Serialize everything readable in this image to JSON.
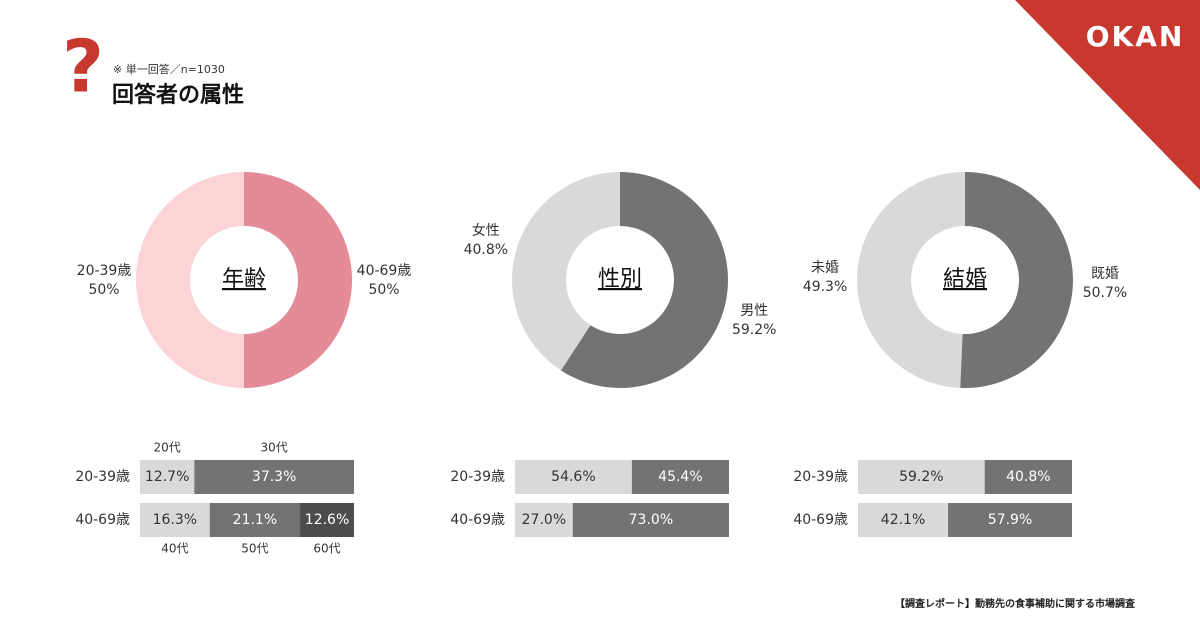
{
  "header": {
    "note": "※ 単一回答／n=1030",
    "title": "回答者の属性",
    "logo": "OKAN"
  },
  "footer": "【調査レポート】勤務先の食事補助に関する市場調査",
  "chart_data": [
    {
      "type": "donut",
      "title": "年齢",
      "categories": [
        "20-39歳",
        "40-69歳"
      ],
      "values": [
        50,
        50
      ],
      "value_labels": [
        "50%",
        "50%"
      ],
      "colors": [
        "#fcd4d6",
        "#e48b98"
      ]
    },
    {
      "type": "donut",
      "title": "性別",
      "categories": [
        "女性",
        "男性"
      ],
      "values": [
        40.8,
        59.2
      ],
      "value_labels": [
        "40.8%",
        "59.2%"
      ],
      "colors": [
        "#d9d9d9",
        "#737373"
      ]
    },
    {
      "type": "donut",
      "title": "結婚",
      "categories": [
        "未婚",
        "既婚"
      ],
      "values": [
        49.3,
        50.7
      ],
      "value_labels": [
        "49.3%",
        "50.7%"
      ],
      "colors": [
        "#d9d9d9",
        "#737373"
      ]
    },
    {
      "type": "stacked_bar",
      "xlim": [
        0,
        50
      ],
      "rows": [
        {
          "name": "20-39歳",
          "segments": [
            "20代",
            "30代"
          ],
          "values": [
            12.7,
            37.3
          ],
          "value_labels": [
            "12.7%",
            "37.3%"
          ],
          "colors": [
            "#d9d9d9",
            "#737373"
          ]
        },
        {
          "name": "40-69歳",
          "segments": [
            "40代",
            "50代",
            "60代"
          ],
          "values": [
            16.3,
            21.1,
            12.6
          ],
          "value_labels": [
            "16.3%",
            "21.1%",
            "12.6%"
          ],
          "colors": [
            "#d9d9d9",
            "#737373",
            "#4d4d4d"
          ]
        }
      ]
    },
    {
      "type": "stacked_bar",
      "xlim": [
        0,
        100
      ],
      "rows": [
        {
          "name": "20-39歳",
          "values": [
            54.6,
            45.4
          ],
          "value_labels": [
            "54.6%",
            "45.4%"
          ],
          "colors": [
            "#d9d9d9",
            "#737373"
          ]
        },
        {
          "name": "40-69歳",
          "values": [
            27.0,
            73.0
          ],
          "value_labels": [
            "27.0%",
            "73.0%"
          ],
          "colors": [
            "#d9d9d9",
            "#737373"
          ]
        }
      ]
    },
    {
      "type": "stacked_bar",
      "xlim": [
        0,
        100
      ],
      "rows": [
        {
          "name": "20-39歳",
          "values": [
            59.2,
            40.8
          ],
          "value_labels": [
            "59.2%",
            "40.8%"
          ],
          "colors": [
            "#d9d9d9",
            "#737373"
          ]
        },
        {
          "name": "40-69歳",
          "values": [
            42.1,
            57.9
          ],
          "value_labels": [
            "42.1%",
            "57.9%"
          ],
          "colors": [
            "#d9d9d9",
            "#737373"
          ]
        }
      ]
    }
  ]
}
